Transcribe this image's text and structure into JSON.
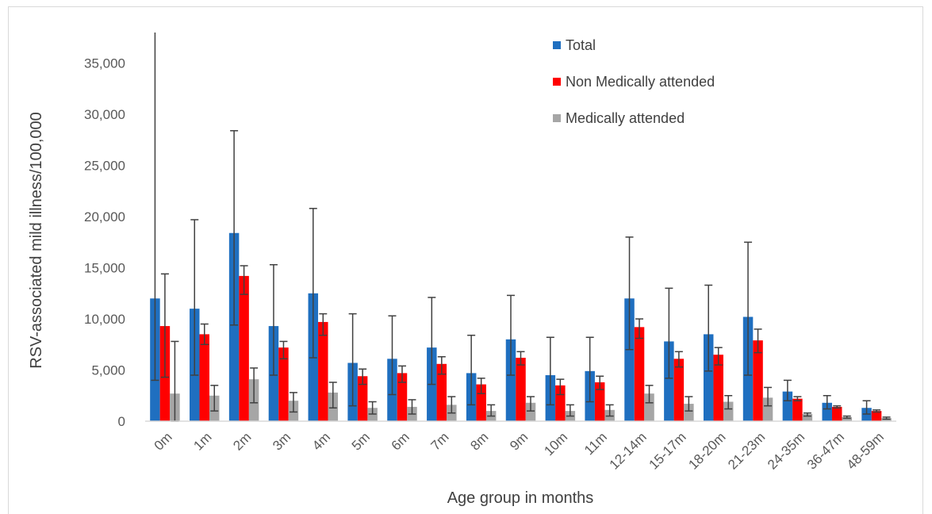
{
  "chart_data": {
    "type": "bar",
    "title": "",
    "xlabel": "Age group in months",
    "ylabel": "RSV-associated  mild illness/100,000",
    "ylim": [
      0,
      38000
    ],
    "yticks": [
      0,
      5000,
      10000,
      15000,
      20000,
      25000,
      30000,
      35000
    ],
    "ytick_labels": [
      "0",
      "5,000",
      "10,000",
      "15,000",
      "20,000",
      "25,000",
      "30,000",
      "35,000"
    ],
    "grid": false,
    "legend_position": "top-right",
    "categories": [
      "0m",
      "1m",
      "2m",
      "3m",
      "4m",
      "5m",
      "6m",
      "7m",
      "8m",
      "9m",
      "10m",
      "11m",
      "12-14m",
      "15-17m",
      "18-20m",
      "21-23m",
      "24-35m",
      "36-47m",
      "48-59m"
    ],
    "series": [
      {
        "name": "Total",
        "color": "#1f6fc0",
        "values": [
          12000,
          11000,
          18400,
          9300,
          12500,
          5700,
          6100,
          7200,
          4700,
          8000,
          4500,
          4900,
          12000,
          7800,
          8500,
          10200,
          2900,
          1800,
          1300
        ],
        "error_low": [
          4000,
          4500,
          9400,
          4500,
          6200,
          1500,
          2600,
          3600,
          1600,
          4500,
          1600,
          1900,
          7000,
          4200,
          4900,
          4500,
          2000,
          1200,
          700
        ],
        "error_high": [
          38000,
          19700,
          28400,
          15300,
          20800,
          10500,
          10300,
          12100,
          8400,
          12300,
          8200,
          8200,
          18000,
          13000,
          13300,
          17500,
          4000,
          2500,
          2000
        ]
      },
      {
        "name": "Non Medically attended",
        "color": "#ff0000",
        "values": [
          9300,
          8500,
          14200,
          7200,
          9700,
          4400,
          4700,
          5600,
          3600,
          6200,
          3500,
          3800,
          9200,
          6100,
          6500,
          7900,
          2200,
          1400,
          1000
        ],
        "error_low": [
          4300,
          7500,
          12400,
          6100,
          8400,
          3600,
          3800,
          4600,
          2700,
          5500,
          2600,
          3100,
          8100,
          5300,
          5500,
          6700,
          2000,
          1300,
          900
        ],
        "error_high": [
          14400,
          9500,
          15200,
          7800,
          10500,
          5100,
          5400,
          6300,
          4200,
          6800,
          4100,
          4400,
          10000,
          6800,
          7200,
          9000,
          2400,
          1500,
          1100
        ]
      },
      {
        "name": "Medically attended",
        "color": "#a6a6a6",
        "values": [
          2700,
          2500,
          4100,
          2000,
          2800,
          1300,
          1400,
          1600,
          1000,
          1800,
          1000,
          1100,
          2700,
          1700,
          1900,
          2300,
          700,
          400,
          300
        ],
        "error_low": [
          0,
          1000,
          1800,
          900,
          1300,
          700,
          700,
          800,
          500,
          1000,
          500,
          500,
          1800,
          1000,
          1200,
          1500,
          500,
          300,
          200
        ],
        "error_high": [
          7800,
          3500,
          5200,
          2800,
          3800,
          1900,
          2100,
          2400,
          1600,
          2400,
          1600,
          1600,
          3500,
          2400,
          2500,
          3300,
          800,
          500,
          400
        ]
      }
    ]
  }
}
